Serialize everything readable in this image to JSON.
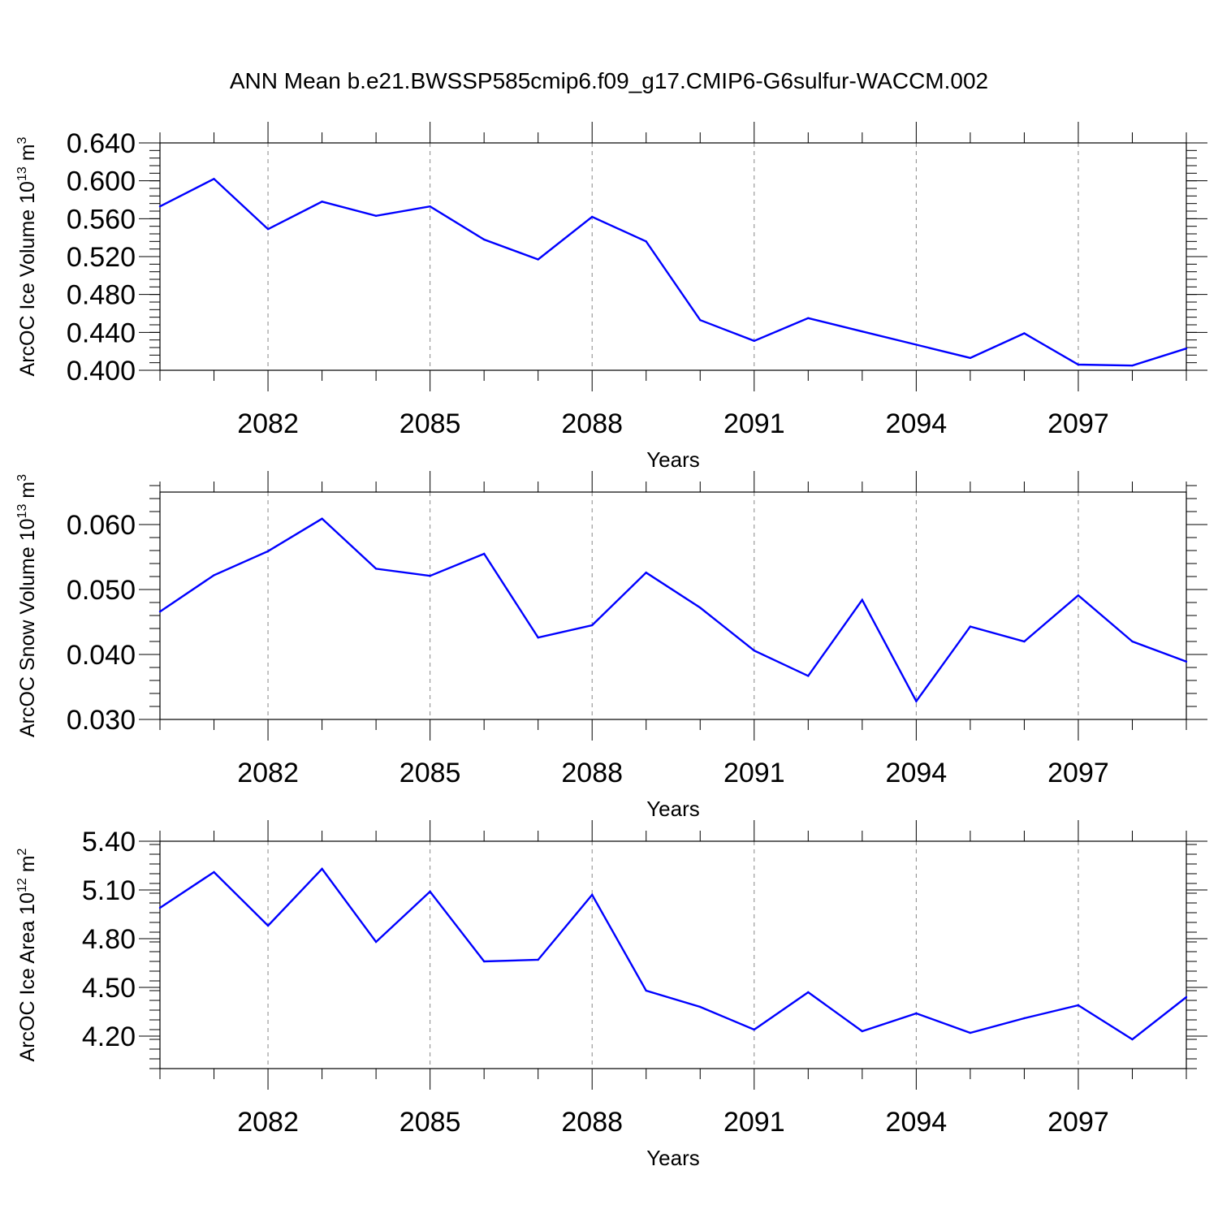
{
  "figure": {
    "title": "ANN Mean b.e21.BWSSP585cmip6.f09_g17.CMIP6-G6sulfur-WACCM.002"
  },
  "chart_data": [
    {
      "type": "line",
      "id": "ice-volume",
      "title": "",
      "xlabel": "Years",
      "ylabel": {
        "text": "ArcOC Ice Volume 10",
        "sup": "13",
        "unit": " m",
        "unit_sup": "3"
      },
      "xlim": [
        2080,
        2099
      ],
      "ylim": [
        0.4,
        0.64
      ],
      "x_ticks": [
        2082,
        2085,
        2088,
        2091,
        2094,
        2097
      ],
      "y_ticks": [
        "0.400",
        "0.440",
        "0.480",
        "0.520",
        "0.560",
        "0.600",
        "0.640"
      ],
      "y_minor_step": 0.008,
      "grid": "vertical-dashed",
      "line_color": "#0000ff",
      "x": [
        2080,
        2081,
        2082,
        2083,
        2084,
        2085,
        2086,
        2087,
        2088,
        2089,
        2090,
        2091,
        2092,
        2093,
        2094,
        2095,
        2096,
        2097,
        2098,
        2099
      ],
      "values": [
        0.573,
        0.602,
        0.549,
        0.578,
        0.563,
        0.573,
        0.538,
        0.517,
        0.562,
        0.536,
        0.453,
        0.431,
        0.455,
        0.441,
        0.427,
        0.413,
        0.439,
        0.406,
        0.405,
        0.423
      ]
    },
    {
      "type": "line",
      "id": "snow-volume",
      "title": "",
      "xlabel": "Years",
      "ylabel": {
        "text": "ArcOC Snow Volume 10",
        "sup": "13",
        "unit": " m",
        "unit_sup": "3"
      },
      "xlim": [
        2080,
        2099
      ],
      "ylim": [
        0.03,
        0.065
      ],
      "x_ticks": [
        2082,
        2085,
        2088,
        2091,
        2094,
        2097
      ],
      "y_ticks": [
        "0.030",
        "0.040",
        "0.050",
        "0.060"
      ],
      "y_minor_step": 0.002,
      "grid": "vertical-dashed",
      "line_color": "#0000ff",
      "x": [
        2080,
        2081,
        2082,
        2083,
        2084,
        2085,
        2086,
        2087,
        2088,
        2089,
        2090,
        2091,
        2092,
        2093,
        2094,
        2095,
        2096,
        2097,
        2098,
        2099
      ],
      "values": [
        0.0466,
        0.0522,
        0.0559,
        0.0609,
        0.0532,
        0.0521,
        0.0555,
        0.0426,
        0.0445,
        0.0526,
        0.0472,
        0.0406,
        0.0367,
        0.0484,
        0.0328,
        0.0443,
        0.042,
        0.0491,
        0.042,
        0.0389
      ]
    },
    {
      "type": "line",
      "id": "ice-area",
      "title": "",
      "xlabel": "Years",
      "ylabel": {
        "text": "ArcOC Ice Area 10",
        "sup": "12",
        "unit": " m",
        "unit_sup": "2"
      },
      "xlim": [
        2080,
        2099
      ],
      "ylim": [
        4.0,
        5.4
      ],
      "x_ticks": [
        2082,
        2085,
        2088,
        2091,
        2094,
        2097
      ],
      "y_ticks": [
        "4.20",
        "4.50",
        "4.80",
        "5.10",
        "5.40"
      ],
      "y_minor_step": 0.06,
      "grid": "vertical-dashed",
      "line_color": "#0000ff",
      "x": [
        2080,
        2081,
        2082,
        2083,
        2084,
        2085,
        2086,
        2087,
        2088,
        2089,
        2090,
        2091,
        2092,
        2093,
        2094,
        2095,
        2096,
        2097,
        2098,
        2099
      ],
      "values": [
        4.99,
        5.21,
        4.88,
        5.23,
        4.78,
        5.09,
        4.66,
        4.67,
        5.07,
        4.48,
        4.38,
        4.24,
        4.47,
        4.23,
        4.34,
        4.22,
        4.31,
        4.39,
        4.18,
        4.44
      ]
    }
  ]
}
